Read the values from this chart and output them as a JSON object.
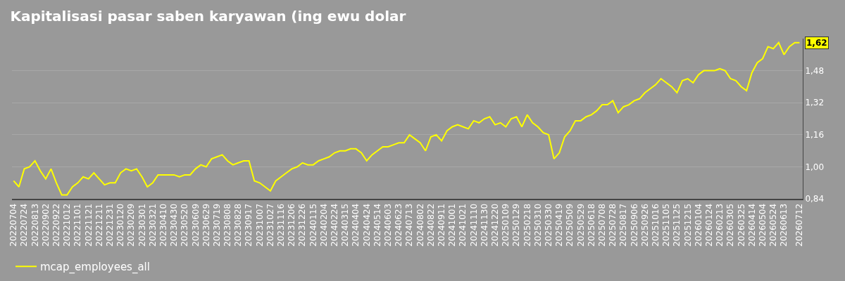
{
  "chart_data": {
    "type": "line",
    "title": "Kapitalisasi pasar saben karyawan (ing ewu dolar",
    "x": [
      "2022-07-04",
      "2022-07-14",
      "2022-07-24",
      "2022-08-03",
      "2022-08-13",
      "2022-08-23",
      "2022-09-02",
      "2022-09-12",
      "2022-09-22",
      "2022-10-02",
      "2022-10-12",
      "2022-10-22",
      "2022-11-01",
      "2022-11-11",
      "2022-11-21",
      "2022-12-01",
      "2022-12-11",
      "2022-12-21",
      "2022-12-31",
      "2023-01-10",
      "2023-01-20",
      "2023-01-30",
      "2023-02-09",
      "2023-02-19",
      "2023-03-01",
      "2023-03-11",
      "2023-03-21",
      "2023-03-31",
      "2023-04-10",
      "2023-04-20",
      "2023-04-30",
      "2023-05-10",
      "2023-05-20",
      "2023-05-30",
      "2023-06-09",
      "2023-06-19",
      "2023-06-29",
      "2023-07-09",
      "2023-07-19",
      "2023-07-29",
      "2023-08-08",
      "2023-08-18",
      "2023-08-28",
      "2023-09-07",
      "2023-09-17",
      "2023-09-27",
      "2023-10-07",
      "2023-10-17",
      "2023-10-27",
      "2023-11-06",
      "2023-11-16",
      "2023-11-26",
      "2023-12-06",
      "2023-12-16",
      "2023-12-26",
      "2024-01-05",
      "2024-01-15",
      "2024-01-25",
      "2024-02-04",
      "2024-02-14",
      "2024-02-24",
      "2024-03-05",
      "2024-03-15",
      "2024-03-25",
      "2024-04-04",
      "2024-04-14",
      "2024-04-24",
      "2024-05-04",
      "2024-05-14",
      "2024-05-24",
      "2024-06-03",
      "2024-06-13",
      "2024-06-23",
      "2024-07-03",
      "2024-07-13",
      "2024-07-23",
      "2024-08-02",
      "2024-08-12",
      "2024-08-22",
      "2024-09-01",
      "2024-09-11",
      "2024-09-21",
      "2024-10-01",
      "2024-10-11",
      "2024-10-21",
      "2024-10-31",
      "2024-11-10",
      "2024-11-20",
      "2024-11-30",
      "2024-12-10",
      "2024-12-20",
      "2024-12-30",
      "2025-01-09",
      "2025-01-19",
      "2025-01-29",
      "2025-02-08",
      "2025-02-18",
      "2025-02-28",
      "2025-03-10",
      "2025-03-20",
      "2025-03-30",
      "2025-04-09",
      "2025-04-19",
      "2025-04-29",
      "2025-05-09",
      "2025-05-19",
      "2025-05-29",
      "2025-06-08",
      "2025-06-18",
      "2025-06-28",
      "2025-07-08",
      "2025-07-18",
      "2025-07-28",
      "2025-08-07",
      "2025-08-17",
      "2025-08-27",
      "2025-09-06",
      "2025-09-16",
      "2025-09-26",
      "2025-10-06",
      "2025-10-16",
      "2025-10-26",
      "2025-11-05",
      "2025-11-15",
      "2025-11-25",
      "2025-12-05",
      "2025-12-15",
      "2025-12-25",
      "2026-01-04",
      "2026-01-14",
      "2026-01-24",
      "2026-02-03",
      "2026-02-13",
      "2026-02-23",
      "2026-03-05",
      "2026-03-15",
      "2026-03-25",
      "2026-04-04",
      "2026-04-14",
      "2026-04-24",
      "2026-05-04",
      "2026-05-14",
      "2026-05-24",
      "2026-06-03",
      "2026-06-13",
      "2026-06-23",
      "2026-07-03",
      "2026-07-12"
    ],
    "series": [
      {
        "name": "mcap_employees_all",
        "color": "#ffff00",
        "values": [
          0.93,
          0.9,
          0.99,
          1.0,
          1.03,
          0.98,
          0.94,
          0.99,
          0.92,
          0.86,
          0.86,
          0.9,
          0.92,
          0.95,
          0.94,
          0.97,
          0.94,
          0.91,
          0.92,
          0.92,
          0.97,
          0.99,
          0.98,
          0.99,
          0.95,
          0.9,
          0.92,
          0.96,
          0.96,
          0.96,
          0.96,
          0.95,
          0.96,
          0.96,
          0.99,
          1.01,
          1.0,
          1.04,
          1.05,
          1.06,
          1.03,
          1.01,
          1.02,
          1.03,
          1.03,
          0.93,
          0.92,
          0.9,
          0.88,
          0.93,
          0.95,
          0.97,
          0.99,
          1.0,
          1.02,
          1.01,
          1.01,
          1.03,
          1.04,
          1.05,
          1.07,
          1.08,
          1.08,
          1.09,
          1.09,
          1.07,
          1.03,
          1.06,
          1.08,
          1.1,
          1.1,
          1.11,
          1.12,
          1.12,
          1.16,
          1.14,
          1.12,
          1.08,
          1.15,
          1.16,
          1.13,
          1.18,
          1.2,
          1.21,
          1.2,
          1.19,
          1.23,
          1.22,
          1.24,
          1.25,
          1.21,
          1.22,
          1.2,
          1.24,
          1.25,
          1.2,
          1.26,
          1.22,
          1.2,
          1.17,
          1.16,
          1.04,
          1.07,
          1.15,
          1.18,
          1.23,
          1.23,
          1.25,
          1.26,
          1.28,
          1.31,
          1.31,
          1.33,
          1.27,
          1.3,
          1.31,
          1.33,
          1.34,
          1.37,
          1.39,
          1.41,
          1.44,
          1.42,
          1.4,
          1.37,
          1.43,
          1.44,
          1.42,
          1.46,
          1.48,
          1.48,
          1.48,
          1.49,
          1.48,
          1.44,
          1.43,
          1.4,
          1.38,
          1.47,
          1.52,
          1.54,
          1.6,
          1.59,
          1.62,
          1.56,
          1.6,
          1.62,
          1.62
        ]
      }
    ],
    "xlim": [
      "2022-07-01",
      "2026-07-18"
    ],
    "xticks": [
      {
        "value": "2022-07-04",
        "label": "20220704"
      },
      {
        "value": "2022-07-24",
        "label": "20220724"
      },
      {
        "value": "2022-08-13",
        "label": "20220813"
      },
      {
        "value": "2022-09-02",
        "label": "20220902"
      },
      {
        "value": "2022-09-22",
        "label": "20220922"
      },
      {
        "value": "2022-10-12",
        "label": "20221012"
      },
      {
        "value": "2022-11-01",
        "label": "20221101"
      },
      {
        "value": "2022-11-21",
        "label": "20221121"
      },
      {
        "value": "2022-12-11",
        "label": "20221211"
      },
      {
        "value": "2022-12-31",
        "label": "20221231"
      },
      {
        "value": "2023-01-20",
        "label": "20230120"
      },
      {
        "value": "2023-02-09",
        "label": "20230209"
      },
      {
        "value": "2023-03-01",
        "label": "20230301"
      },
      {
        "value": "2023-03-21",
        "label": "20230321"
      },
      {
        "value": "2023-04-10",
        "label": "20230410"
      },
      {
        "value": "2023-04-30",
        "label": "20230430"
      },
      {
        "value": "2023-05-20",
        "label": "20230520"
      },
      {
        "value": "2023-06-09",
        "label": "20230609"
      },
      {
        "value": "2023-06-29",
        "label": "20230629"
      },
      {
        "value": "2023-07-19",
        "label": "20230719"
      },
      {
        "value": "2023-08-08",
        "label": "20230808"
      },
      {
        "value": "2023-08-28",
        "label": "20230828"
      },
      {
        "value": "2023-09-17",
        "label": "20230917"
      },
      {
        "value": "2023-10-07",
        "label": "20231007"
      },
      {
        "value": "2023-10-27",
        "label": "20231027"
      },
      {
        "value": "2023-11-16",
        "label": "20231116"
      },
      {
        "value": "2023-12-06",
        "label": "20231206"
      },
      {
        "value": "2023-12-26",
        "label": "20231226"
      },
      {
        "value": "2024-01-15",
        "label": "20240115"
      },
      {
        "value": "2024-02-04",
        "label": "20240204"
      },
      {
        "value": "2024-02-24",
        "label": "20240224"
      },
      {
        "value": "2024-03-15",
        "label": "20240315"
      },
      {
        "value": "2024-04-04",
        "label": "20240404"
      },
      {
        "value": "2024-04-24",
        "label": "20240424"
      },
      {
        "value": "2024-05-14",
        "label": "20240514"
      },
      {
        "value": "2024-06-03",
        "label": "20240603"
      },
      {
        "value": "2024-06-23",
        "label": "20240623"
      },
      {
        "value": "2024-07-13",
        "label": "20240713"
      },
      {
        "value": "2024-08-02",
        "label": "20240802"
      },
      {
        "value": "2024-08-22",
        "label": "20240822"
      },
      {
        "value": "2024-09-11",
        "label": "20240911"
      },
      {
        "value": "2024-10-01",
        "label": "20241001"
      },
      {
        "value": "2024-10-21",
        "label": "20241021"
      },
      {
        "value": "2024-11-10",
        "label": "20241110"
      },
      {
        "value": "2024-11-30",
        "label": "20241130"
      },
      {
        "value": "2024-12-20",
        "label": "20241220"
      },
      {
        "value": "2025-01-09",
        "label": "20250109"
      },
      {
        "value": "2025-01-29",
        "label": "20250129"
      },
      {
        "value": "2025-02-18",
        "label": "20250218"
      },
      {
        "value": "2025-03-10",
        "label": "20250310"
      },
      {
        "value": "2025-03-30",
        "label": "20250330"
      },
      {
        "value": "2025-04-19",
        "label": "20250419"
      },
      {
        "value": "2025-05-09",
        "label": "20250509"
      },
      {
        "value": "2025-05-29",
        "label": "20250529"
      },
      {
        "value": "2025-06-18",
        "label": "20250618"
      },
      {
        "value": "2025-07-08",
        "label": "20250708"
      },
      {
        "value": "2025-07-28",
        "label": "20250728"
      },
      {
        "value": "2025-08-17",
        "label": "20250817"
      },
      {
        "value": "2025-09-06",
        "label": "20250906"
      },
      {
        "value": "2025-09-26",
        "label": "20250926"
      },
      {
        "value": "2025-10-16",
        "label": "20251016"
      },
      {
        "value": "2025-11-05",
        "label": "20251105"
      },
      {
        "value": "2025-11-25",
        "label": "20251125"
      },
      {
        "value": "2025-12-15",
        "label": "20251215"
      },
      {
        "value": "2026-01-04",
        "label": "20260104"
      },
      {
        "value": "2026-01-24",
        "label": "20260124"
      },
      {
        "value": "2026-02-13",
        "label": "20260213"
      },
      {
        "value": "2026-03-05",
        "label": "20260305"
      },
      {
        "value": "2026-03-25",
        "label": "20260325"
      },
      {
        "value": "2026-04-14",
        "label": "20260414"
      },
      {
        "value": "2026-05-04",
        "label": "20260504"
      },
      {
        "value": "2026-05-24",
        "label": "20260524"
      },
      {
        "value": "2026-06-13",
        "label": "20260613"
      },
      {
        "value": "2026-07-12",
        "label": "20260712"
      }
    ],
    "ylim": [
      0.84,
      1.64
    ],
    "yticks": [
      {
        "value": 0.84,
        "label": "0,84"
      },
      {
        "value": 1.0,
        "label": "1,00"
      },
      {
        "value": 1.16,
        "label": "1,16"
      },
      {
        "value": 1.32,
        "label": "1,32"
      },
      {
        "value": 1.48,
        "label": "1,48"
      }
    ],
    "annotations": [
      {
        "text": "1,62",
        "x": "2026-07-12",
        "y": 1.62
      }
    ],
    "grid": "y",
    "legend": "bottom left",
    "marker": "none",
    "line_style": "solid"
  }
}
